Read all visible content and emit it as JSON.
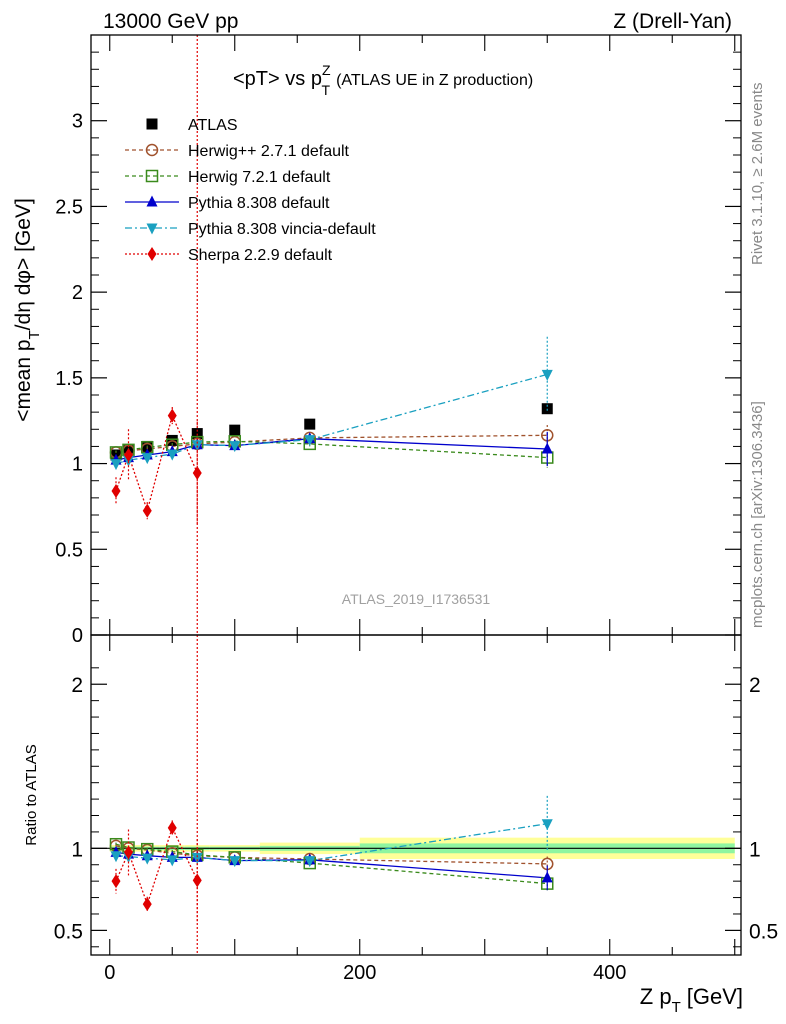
{
  "header": {
    "left": "13000 GeV pp",
    "right": "Z (Drell-Yan)"
  },
  "side_labels": {
    "rivet": "Rivet 3.1.10, ≥ 2.6M events",
    "mcplots": "mcplots.cern.ch [arXiv:1306.3436]"
  },
  "watermark": "ATLAS_2019_I1736531",
  "colors": {
    "atlas": "#000000",
    "herwigpp": "#a0522d",
    "herwig7": "#3a8a1c",
    "pythia": "#0000cc",
    "vincia": "#1aa0c0",
    "sherpa": "#e00000",
    "band_inner": "#8ff5a0",
    "band_outer": "#ffff99"
  },
  "chart_data": [
    {
      "type": "scatter",
      "title": "<pT> vs p",
      "title_sup": "Z",
      "title_sub": "T",
      "title_suffix": "(ATLAS UE in Z production)",
      "ylabel": "<mean p",
      "ylabel_sub": "T",
      "ylabel_suffix": "/dη dφ> [GeV]",
      "ylim": [
        0,
        3.5
      ],
      "yticks": [
        "0",
        "0.5",
        "1",
        "1.5",
        "2",
        "2.5",
        "3"
      ],
      "xlim": [
        -15,
        505
      ],
      "series": [
        {
          "name": "ATLAS",
          "marker": "square-filled",
          "line": "none",
          "x": [
            5,
            15,
            30,
            50,
            70,
            100,
            160,
            350
          ],
          "y": [
            1.05,
            1.075,
            1.1,
            1.135,
            1.175,
            1.195,
            1.23,
            1.32
          ],
          "err": [
            0.01,
            0.01,
            0.01,
            0.01,
            0.01,
            0.01,
            0.015,
            0.03
          ]
        },
        {
          "name": "Herwig++ 2.7.1 default",
          "marker": "circle-open",
          "line": "dashed",
          "x": [
            5,
            15,
            30,
            50,
            70,
            100,
            160,
            350
          ],
          "y": [
            1.065,
            1.075,
            1.085,
            1.1,
            1.115,
            1.125,
            1.15,
            1.165
          ],
          "err": [
            0.01,
            0.01,
            0.01,
            0.01,
            0.01,
            0.01,
            0.015,
            0.06
          ]
        },
        {
          "name": "Herwig 7.2.1 default",
          "marker": "square-open",
          "line": "dashed",
          "x": [
            5,
            15,
            30,
            50,
            70,
            100,
            160,
            350
          ],
          "y": [
            1.065,
            1.08,
            1.095,
            1.11,
            1.125,
            1.13,
            1.115,
            1.035
          ],
          "err": [
            0.01,
            0.01,
            0.01,
            0.01,
            0.01,
            0.01,
            0.015,
            0.06
          ]
        },
        {
          "name": "Pythia 8.308 default",
          "marker": "triangle-up",
          "line": "solid",
          "x": [
            5,
            15,
            30,
            50,
            70,
            100,
            160,
            350
          ],
          "y": [
            1.02,
            1.035,
            1.05,
            1.07,
            1.11,
            1.105,
            1.145,
            1.085
          ],
          "err": [
            0.01,
            0.01,
            0.01,
            0.01,
            0.01,
            0.01,
            0.015,
            0.1
          ]
        },
        {
          "name": "Pythia 8.308 vincia-default",
          "marker": "triangle-down",
          "line": "dashdot",
          "x": [
            5,
            15,
            30,
            50,
            70,
            100,
            160,
            350
          ],
          "y": [
            1.0,
            1.02,
            1.035,
            1.055,
            1.11,
            1.105,
            1.14,
            1.52
          ],
          "err": [
            0.01,
            0.01,
            0.01,
            0.01,
            0.01,
            0.01,
            0.015,
            0.22
          ]
        },
        {
          "name": "Sherpa 2.2.9 default",
          "marker": "diamond",
          "line": "dotted",
          "x": [
            5,
            15,
            30,
            50,
            70
          ],
          "y": [
            0.84,
            1.05,
            0.725,
            1.28,
            0.945
          ],
          "err": [
            0.08,
            0.15,
            0.05,
            0.05,
            0.3
          ]
        }
      ]
    },
    {
      "type": "scatter",
      "ylabel": "Ratio to ATLAS",
      "ylim": [
        0.35,
        2.3
      ],
      "yticks": [
        "0.5",
        "1",
        "2"
      ],
      "xlabel": "Z p",
      "xlabel_sub": "T",
      "xlabel_suffix": "[GeV]",
      "xlim": [
        -15,
        505
      ],
      "xticks": [
        "0",
        "200",
        "400"
      ],
      "bands": {
        "x_edges": [
          0,
          10,
          20,
          40,
          60,
          80,
          120,
          200,
          500
        ],
        "inner": [
          0.01,
          0.01,
          0.01,
          0.01,
          0.01,
          0.01,
          0.015,
          0.03
        ],
        "outer": [
          0.02,
          0.02,
          0.02,
          0.02,
          0.02,
          0.02,
          0.035,
          0.065
        ]
      },
      "series": [
        {
          "name": "Herwig++ 2.7.1 default",
          "x": [
            5,
            15,
            30,
            50,
            70,
            100,
            160,
            350
          ],
          "y": [
            1.015,
            1.0,
            0.99,
            0.97,
            0.955,
            0.945,
            0.935,
            0.905
          ],
          "err": [
            0.01,
            0.01,
            0.01,
            0.01,
            0.01,
            0.01,
            0.015,
            0.045
          ]
        },
        {
          "name": "Herwig 7.2.1 default",
          "x": [
            5,
            15,
            30,
            50,
            70,
            100,
            160,
            350
          ],
          "y": [
            1.025,
            1.005,
            0.995,
            0.98,
            0.96,
            0.945,
            0.91,
            0.785
          ],
          "err": [
            0.01,
            0.01,
            0.01,
            0.01,
            0.01,
            0.01,
            0.015,
            0.045
          ]
        },
        {
          "name": "Pythia 8.308 default",
          "x": [
            5,
            15,
            30,
            50,
            70,
            100,
            160,
            350
          ],
          "y": [
            0.975,
            0.965,
            0.955,
            0.945,
            0.945,
            0.925,
            0.93,
            0.82
          ],
          "err": [
            0.01,
            0.01,
            0.01,
            0.01,
            0.01,
            0.01,
            0.015,
            0.075
          ]
        },
        {
          "name": "Pythia 8.308 vincia-default",
          "x": [
            5,
            15,
            30,
            50,
            70,
            100,
            160,
            350
          ],
          "y": [
            0.955,
            0.95,
            0.94,
            0.93,
            0.945,
            0.925,
            0.925,
            1.15
          ],
          "err": [
            0.01,
            0.01,
            0.01,
            0.01,
            0.01,
            0.01,
            0.015,
            0.17
          ]
        },
        {
          "name": "Sherpa 2.2.9 default",
          "x": [
            5,
            15,
            30,
            50,
            70
          ],
          "y": [
            0.8,
            0.975,
            0.66,
            1.125,
            0.805
          ],
          "err": [
            0.075,
            0.14,
            0.045,
            0.045,
            0.25
          ]
        }
      ]
    }
  ]
}
